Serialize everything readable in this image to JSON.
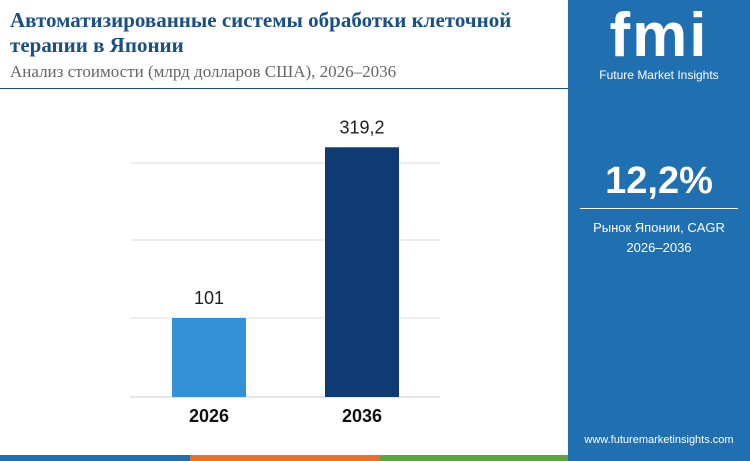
{
  "chart_data": {
    "type": "bar",
    "title": "Автоматизированные системы обработки клеточной терапии в Японии",
    "subtitle": "Анализ стоимости (млрд долларов США), 2026–2036",
    "categories": [
      "2026",
      "2036"
    ],
    "values": [
      101,
      319.2
    ],
    "value_labels": [
      "101",
      "319,2"
    ],
    "colors": [
      "#3391d8",
      "#0d3b72"
    ],
    "ylim": [
      0,
      340
    ]
  },
  "panel": {
    "logo": "fmi",
    "brand": "Future Market Insights",
    "cagr": "12,2%",
    "cagr_label": "Рынок Японии, CAGR",
    "cagr_period": "2026–2036",
    "website": "www.futuremarketinsights.com"
  }
}
